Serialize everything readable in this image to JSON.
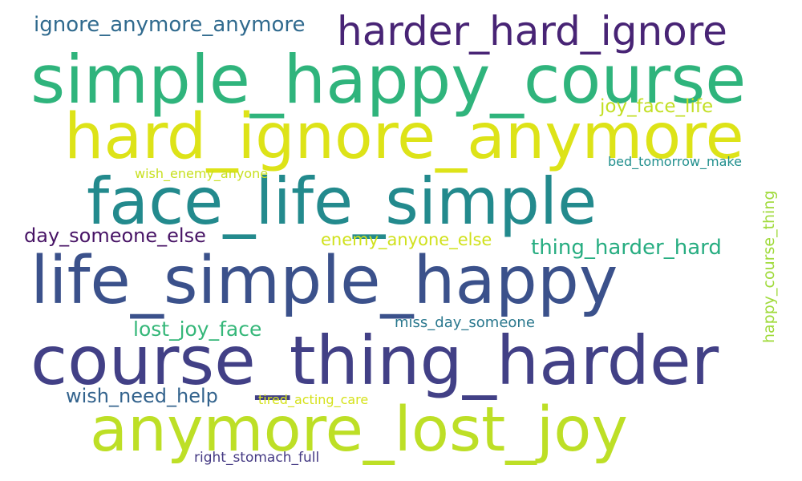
{
  "words": [
    {
      "text": "simple_happy_course",
      "color": "#2fb47c"
    },
    {
      "text": "hard_ignore_anymore",
      "color": "#dde318"
    },
    {
      "text": "face_life_simple",
      "color": "#238a8d"
    },
    {
      "text": "life_simple_happy",
      "color": "#3b518b"
    },
    {
      "text": "course_thing_harder",
      "color": "#424086"
    },
    {
      "text": "anymore_lost_joy",
      "color": "#bddf26"
    },
    {
      "text": "harder_hard_ignore",
      "color": "#482475"
    },
    {
      "text": "ignore_anymore_anymore",
      "color": "#306a8e"
    },
    {
      "text": "joy_face_life",
      "color": "#c2df23"
    },
    {
      "text": "wish_enemy_anyone",
      "color": "#c8e020"
    },
    {
      "text": "bed_tomorrow_make",
      "color": "#218f8d"
    },
    {
      "text": "day_someone_else",
      "color": "#471365"
    },
    {
      "text": "enemy_anyone_else",
      "color": "#d0e11c"
    },
    {
      "text": "thing_harder_hard",
      "color": "#27ad81"
    },
    {
      "text": "happy_course_thing",
      "color": "#9fda3a"
    },
    {
      "text": "lost_joy_face",
      "color": "#35b779"
    },
    {
      "text": "miss_day_someone",
      "color": "#2a788e"
    },
    {
      "text": "wish_need_help",
      "color": "#33638d"
    },
    {
      "text": "tired_acting_care",
      "color": "#d5e21a"
    },
    {
      "text": "right_stomach_full",
      "color": "#443983"
    }
  ]
}
